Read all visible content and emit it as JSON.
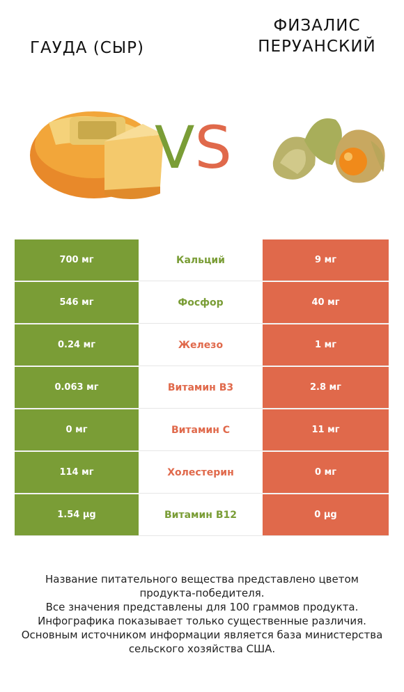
{
  "header": {
    "left_title": "ГАУДА (СЫР)",
    "right_title_line1": "ФИЗАЛИС",
    "right_title_line2": "ПЕРУАНСКИЙ",
    "vs_v": "V",
    "vs_s": "S"
  },
  "images": {
    "left": "gouda-cheese-icon",
    "right": "physalis-fruit-icon"
  },
  "colors": {
    "left_accent": "#7a9d36",
    "right_accent": "#e0694b"
  },
  "rows": [
    {
      "left": "700 мг",
      "label": "Кальций",
      "right": "9 мг",
      "winner": "left"
    },
    {
      "left": "546 мг",
      "label": "Фосфор",
      "right": "40 мг",
      "winner": "left"
    },
    {
      "left": "0.24 мг",
      "label": "Железо",
      "right": "1 мг",
      "winner": "right"
    },
    {
      "left": "0.063 мг",
      "label": "Витамин B3",
      "right": "2.8 мг",
      "winner": "right"
    },
    {
      "left": "0 мг",
      "label": "Витамин C",
      "right": "11 мг",
      "winner": "right"
    },
    {
      "left": "114 мг",
      "label": "Холестерин",
      "right": "0 мг",
      "winner": "right"
    },
    {
      "left": "1.54 µg",
      "label": "Витамин B12",
      "right": "0 µg",
      "winner": "left"
    }
  ],
  "footer": {
    "line1": "Название питательного вещества представлено цветом",
    "line2": "продукта-победителя.",
    "line3": "Все значения представлены для 100 граммов продукта.",
    "line4": "Инфографика показывает только существенные различия.",
    "line5": "Основным источником информации является база министерства",
    "line6": "сельского хозяйства США."
  }
}
